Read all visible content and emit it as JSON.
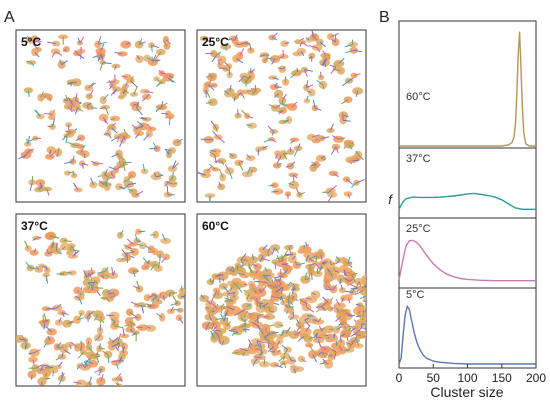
{
  "panel_a": {
    "label": "A",
    "snapshots": [
      {
        "temperature": "5°C",
        "state": "dispersed"
      },
      {
        "temperature": "25°C",
        "state": "dispersed"
      },
      {
        "temperature": "37°C",
        "state": "networked"
      },
      {
        "temperature": "60°C",
        "state": "single-aggregate"
      }
    ]
  },
  "panel_b": {
    "label": "B",
    "colors": {
      "60°C": "#b8935a",
      "37°C": "#2a9d9d",
      "25°C": "#c77bb3",
      "5°C": "#5a78b5"
    }
  },
  "chart_data": {
    "type": "line",
    "xlabel": "Cluster size",
    "ylabel": "f",
    "xlim": [
      0,
      200
    ],
    "x_ticks": [
      "0",
      "50",
      "100",
      "150",
      "200"
    ],
    "grid": false,
    "layout": "stacked, offset vertically",
    "series": [
      {
        "name": "60°C",
        "x": [
          0,
          150,
          160,
          165,
          168,
          170,
          172,
          174,
          176,
          178,
          180,
          182,
          185,
          190,
          200
        ],
        "y": [
          0,
          0,
          0.01,
          0.03,
          0.08,
          0.2,
          0.45,
          0.8,
          1.0,
          0.7,
          0.35,
          0.12,
          0.02,
          0,
          0
        ]
      },
      {
        "name": "37°C",
        "x": [
          0,
          5,
          10,
          20,
          30,
          40,
          50,
          60,
          70,
          80,
          90,
          100,
          110,
          120,
          130,
          140,
          150,
          160,
          170,
          180,
          190,
          200
        ],
        "y": [
          0.1,
          0.35,
          0.5,
          0.56,
          0.55,
          0.55,
          0.55,
          0.56,
          0.58,
          0.6,
          0.64,
          0.68,
          0.7,
          0.66,
          0.62,
          0.56,
          0.46,
          0.3,
          0.15,
          0.1,
          0.1,
          0.1
        ]
      },
      {
        "name": "25°C",
        "x": [
          0,
          5,
          10,
          15,
          20,
          25,
          30,
          40,
          50,
          60,
          70,
          80,
          90,
          100,
          120,
          140,
          160,
          180,
          200
        ],
        "y": [
          0.05,
          0.45,
          0.82,
          0.95,
          0.96,
          0.92,
          0.84,
          0.62,
          0.42,
          0.28,
          0.18,
          0.12,
          0.08,
          0.06,
          0.04,
          0.03,
          0.03,
          0.03,
          0.03
        ]
      },
      {
        "name": "5°C",
        "x": [
          0,
          3,
          6,
          9,
          12,
          15,
          18,
          22,
          26,
          30,
          35,
          40,
          50,
          60,
          70,
          80,
          100,
          120,
          150,
          200
        ],
        "y": [
          0,
          0.1,
          0.5,
          0.85,
          1.0,
          0.95,
          0.78,
          0.55,
          0.38,
          0.26,
          0.16,
          0.1,
          0.05,
          0.03,
          0.02,
          0.01,
          0,
          0,
          0,
          0
        ]
      }
    ]
  }
}
